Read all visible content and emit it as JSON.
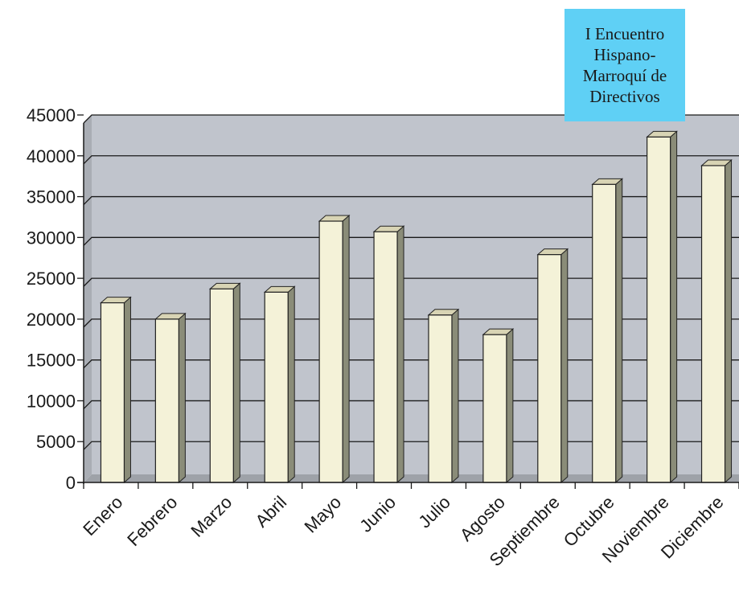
{
  "chart_data": {
    "type": "bar",
    "title": "",
    "xlabel": "",
    "ylabel": "",
    "categories": [
      "Enero",
      "Febrero",
      "Marzo",
      "Abril",
      "Mayo",
      "Junio",
      "Julio",
      "Agosto",
      "Septiembre",
      "Octubre",
      "Noviembre",
      "Diciembre"
    ],
    "values": [
      22000,
      20000,
      23700,
      23300,
      32000,
      30700,
      20500,
      18100,
      27900,
      36500,
      42300,
      38800
    ],
    "ylim": [
      0,
      45000
    ],
    "yticks": [
      "0",
      "5000",
      "10000",
      "15000",
      "20000",
      "25000",
      "30000",
      "35000",
      "40000",
      "45000"
    ],
    "grid": true,
    "style": "3d-column",
    "colors": {
      "plot_background": "#c0c4cc",
      "bar_front": "#f4f2d8",
      "bar_side": "#8a8c78",
      "bar_top": "#d8d4b4",
      "gridline": "#1a1a1a",
      "annotation_background": "#5fd0f5"
    },
    "annotation": {
      "lines": [
        "I Encuentro",
        "Hispano-",
        "Marroquí de",
        "Directivos"
      ],
      "target_category": "Noviembre"
    }
  }
}
